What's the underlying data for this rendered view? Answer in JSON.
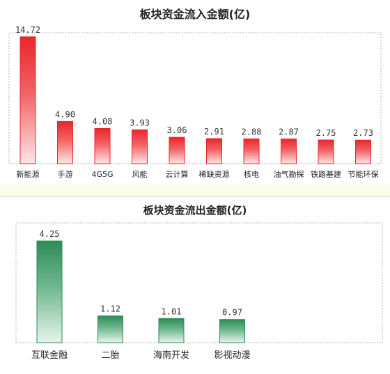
{
  "chart_data": [
    {
      "type": "bar",
      "title": "板块资金流入金额(亿)",
      "categories": [
        "新能源",
        "手游",
        "4G5G",
        "风能",
        "云计算",
        "稀缺资源",
        "核电",
        "油气勘探",
        "铁路基建",
        "节能环保"
      ],
      "value_labels": [
        "14.72",
        "4.90",
        "4.08",
        "3.93",
        "3.06",
        "2.91",
        "2.88",
        "2.87",
        "2.75",
        "2.73"
      ],
      "values": [
        14.72,
        4.9,
        4.08,
        3.93,
        3.06,
        2.91,
        2.88,
        2.87,
        2.75,
        2.73
      ],
      "ylim": [
        0,
        16
      ],
      "color": "#e8272b",
      "grid": false
    },
    {
      "type": "bar",
      "title": "板块资金流出金额(亿)",
      "categories": [
        "互联金融",
        "二胎",
        "海南开发",
        "影视动漫"
      ],
      "value_labels": [
        "4.25",
        "1.12",
        "1.01",
        "0.97"
      ],
      "values": [
        4.25,
        1.12,
        1.01,
        0.97
      ],
      "ylim": [
        0,
        4.6
      ],
      "color": "#2e8b57",
      "grid": false
    }
  ]
}
